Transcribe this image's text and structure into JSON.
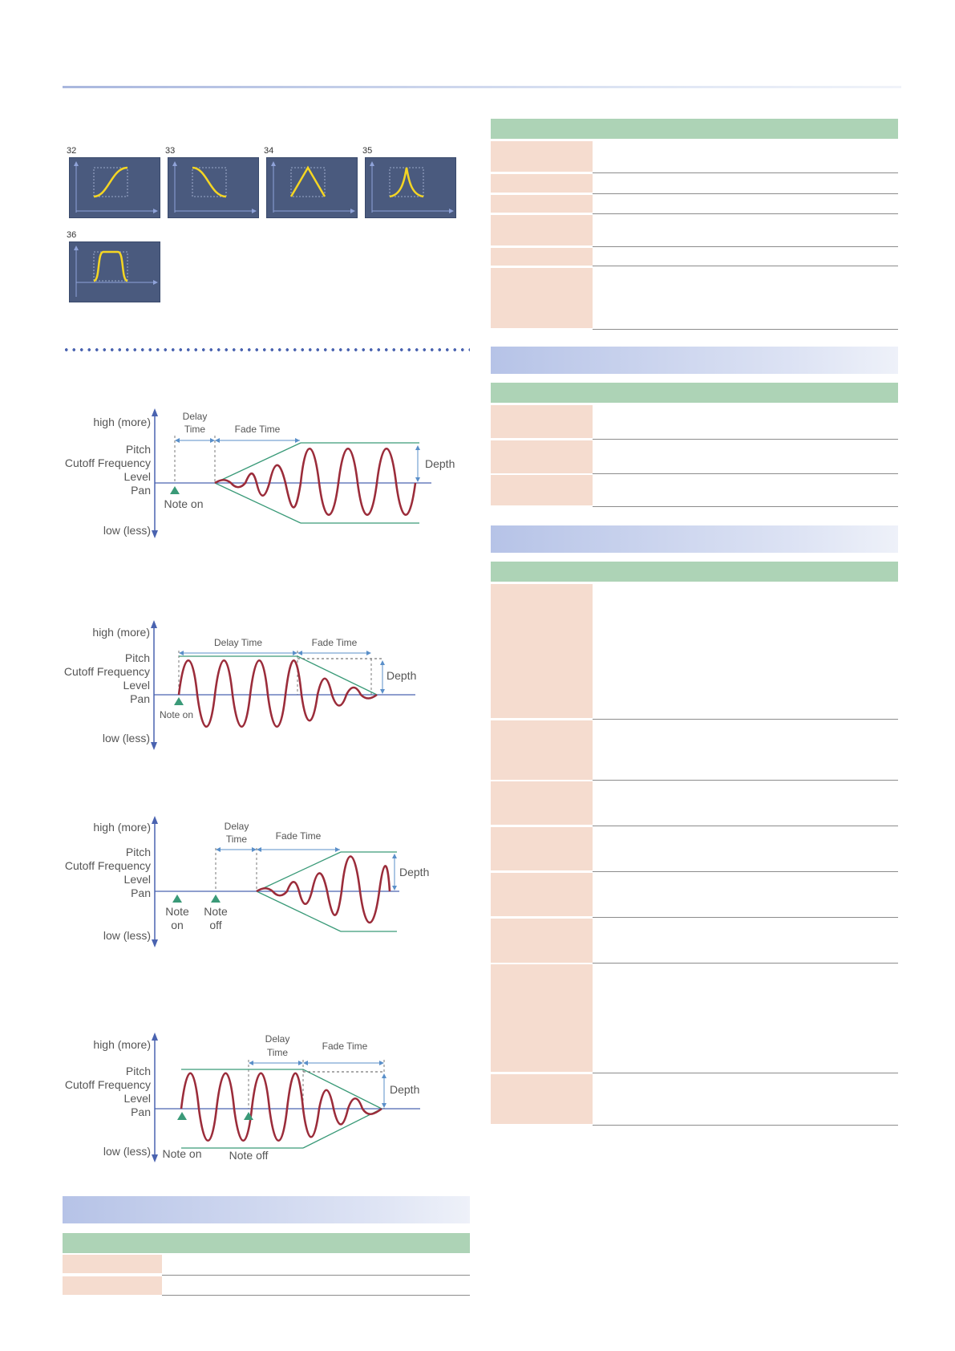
{
  "thumbnails": [
    {
      "number": "32",
      "curve": "s-curve-rise"
    },
    {
      "number": "33",
      "curve": "s-curve-fall"
    },
    {
      "number": "34",
      "curve": "triangle"
    },
    {
      "number": "35",
      "curve": "inverse-triangle"
    },
    {
      "number": "36",
      "curve": "trapezoid"
    }
  ],
  "diagrams": [
    {
      "high": "high (more)",
      "p1": "Pitch",
      "p2": "Cutoff Frequency",
      "p3": "Level",
      "p4": "Pan",
      "low": "low (less)",
      "delay_a": "Delay",
      "delay_b": "Time",
      "fade": "Fade Time",
      "depth": "Depth",
      "note_on": "Note on"
    },
    {
      "high": "high (more)",
      "p1": "Pitch",
      "p2": "Cutoff Frequency",
      "p3": "Level",
      "p4": "Pan",
      "low": "low (less)",
      "delay": "Delay Time",
      "fade": "Fade Time",
      "depth": "Depth",
      "note_on": "Note on"
    },
    {
      "high": "high (more)",
      "p1": "Pitch",
      "p2": "Cutoff Frequency",
      "p3": "Level",
      "p4": "Pan",
      "low": "low (less)",
      "delay_a": "Delay",
      "delay_b": "Time",
      "fade": "Fade Time",
      "depth": "Depth",
      "note_on_a": "Note",
      "note_on_b": "on",
      "note_off_a": "Note",
      "note_off_b": "off"
    },
    {
      "high": "high (more)",
      "p1": "Pitch",
      "p2": "Cutoff Frequency",
      "p3": "Level",
      "p4": "Pan",
      "low": "low (less)",
      "delay_a": "Delay",
      "delay_b": "Time",
      "fade": "Fade Time",
      "depth": "Depth",
      "note_on": "Note on",
      "note_off": "Note off"
    }
  ],
  "colors": {
    "wave": "#9b2c3a",
    "envelope": "#3a9a78",
    "axis": "#4a63b0",
    "dim": "#5a8fc9"
  }
}
